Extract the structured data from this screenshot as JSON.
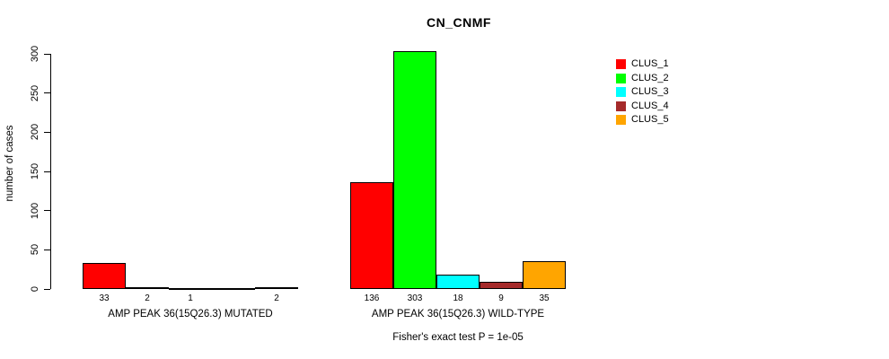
{
  "chart_data": {
    "type": "bar",
    "grouped": true,
    "title": "CN_CNMF",
    "ylabel": "number of cases",
    "annotation": "Fisher's exact test P = 1e-05",
    "ylim": [
      0,
      300
    ],
    "yticks": [
      0,
      50,
      100,
      150,
      200,
      250,
      300
    ],
    "grid": false,
    "legend_position": "top-right",
    "axis_color": "#000000",
    "background_color": "#ffffff",
    "series": [
      {
        "name": "CLUS_1",
        "color": "#FF0000"
      },
      {
        "name": "CLUS_2",
        "color": "#00FF00"
      },
      {
        "name": "CLUS_3",
        "color": "#00FFFF"
      },
      {
        "name": "CLUS_4",
        "color": "#A52A2A"
      },
      {
        "name": "CLUS_5",
        "color": "#FFA500"
      }
    ],
    "groups": [
      {
        "category": "AMP PEAK 36(15Q26.3) MUTATED",
        "values": [
          33,
          2,
          1,
          0,
          2
        ],
        "value_labels": [
          "33",
          "2",
          "1",
          "",
          "2"
        ]
      },
      {
        "category": "AMP PEAK 36(15Q26.3) WILD-TYPE",
        "values": [
          136,
          303,
          18,
          9,
          35
        ],
        "value_labels": [
          "136",
          "303",
          "18",
          "9",
          "35"
        ]
      }
    ]
  }
}
